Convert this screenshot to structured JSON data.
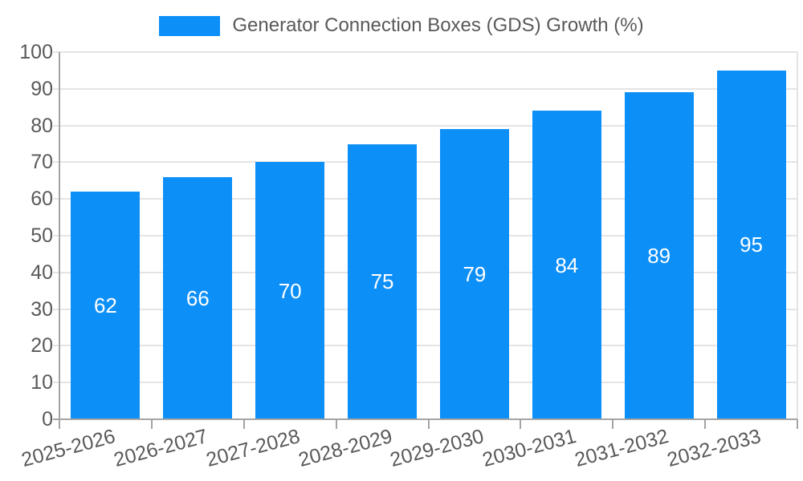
{
  "chart_data": {
    "type": "bar",
    "title": "",
    "categories": [
      "2025-2026",
      "2026-2027",
      "2027-2028",
      "2028-2029",
      "2029-2030",
      "2030-2031",
      "2031-2032",
      "2032-2033"
    ],
    "series": [
      {
        "name": "Generator Connection Boxes (GDS) Growth (%)",
        "values": [
          62,
          66,
          70,
          75,
          79,
          84,
          89,
          95
        ]
      }
    ],
    "xlabel": "",
    "ylabel": "",
    "ylim": [
      0,
      100
    ],
    "yticks": [
      0,
      10,
      20,
      30,
      40,
      50,
      60,
      70,
      80,
      90,
      100
    ],
    "grid": true,
    "legend_position": "top-center",
    "value_labels_position": "inside-center",
    "x_label_rotation_deg": -15,
    "colors": {
      "bar": "#0D8FF8",
      "axis": "#A4A4A4",
      "grid": "#E4E4E4",
      "tick_label": "#595959",
      "legend_text": "#595959",
      "value_label": "#FFFFFF",
      "background": "#FFFFFF"
    }
  }
}
